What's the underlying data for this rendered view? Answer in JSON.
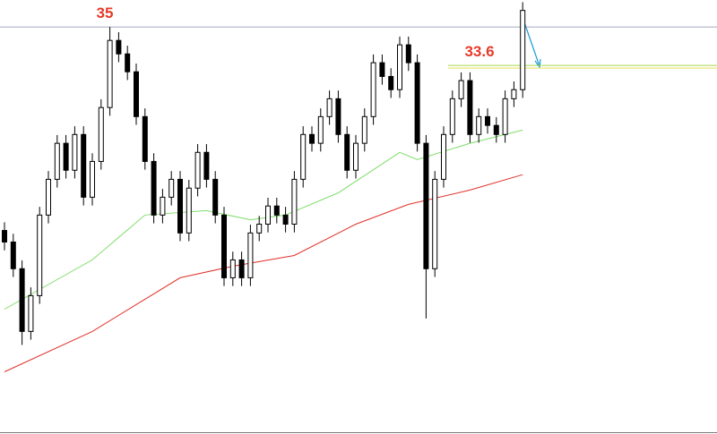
{
  "chart_data": {
    "type": "candlestick",
    "ylim": [
      20.2,
      35.98
    ],
    "open": [
      27.6,
      27.18,
      26.21,
      23.93,
      25.23,
      28.16,
      29.46,
      30.77,
      29.79,
      31.09,
      28.81,
      30.11,
      32.07,
      34.51,
      34.02,
      33.37,
      31.74,
      30.11,
      28.16,
      28.81,
      29.46,
      27.51,
      29.14,
      30.44,
      29.46,
      28.16,
      25.88,
      26.53,
      25.88,
      27.51,
      27.83,
      28.49,
      28.16,
      27.83,
      29.46,
      31.09,
      30.77,
      31.74,
      32.39,
      31.09,
      29.79,
      30.77,
      31.74,
      33.7,
      33.2,
      32.72,
      34.35,
      33.7,
      30.77,
      26.21,
      29.46,
      31.09,
      32.39,
      33.05,
      31.09,
      31.74,
      31.42,
      31.09,
      32.39,
      32.72
    ],
    "high": [
      27.9,
      27.48,
      26.51,
      25.53,
      28.46,
      29.76,
      31.07,
      31.07,
      31.39,
      31.39,
      30.41,
      32.37,
      35.0,
      34.81,
      34.32,
      33.67,
      32.04,
      30.41,
      29.11,
      29.76,
      29.76,
      29.44,
      30.74,
      30.74,
      29.76,
      28.46,
      26.83,
      26.83,
      27.81,
      28.13,
      28.79,
      28.79,
      28.46,
      29.76,
      31.39,
      31.39,
      32.04,
      32.69,
      32.69,
      31.39,
      31.07,
      32.04,
      34.0,
      34.0,
      33.5,
      34.65,
      34.65,
      34.0,
      31.07,
      29.76,
      31.39,
      32.69,
      33.35,
      33.35,
      32.04,
      32.04,
      31.72,
      32.69,
      33.02,
      35.9
    ],
    "low": [
      26.88,
      25.91,
      23.44,
      23.63,
      24.93,
      27.86,
      29.16,
      29.49,
      29.49,
      28.51,
      28.51,
      29.81,
      31.77,
      33.72,
      33.07,
      31.44,
      29.81,
      27.86,
      27.86,
      28.51,
      27.21,
      27.21,
      28.84,
      29.16,
      27.86,
      25.58,
      25.58,
      25.58,
      25.58,
      27.21,
      27.53,
      27.86,
      27.53,
      27.53,
      29.16,
      30.47,
      30.47,
      31.44,
      30.79,
      29.49,
      29.49,
      30.47,
      31.44,
      32.9,
      32.42,
      32.42,
      33.4,
      30.47,
      24.4,
      25.91,
      29.16,
      30.79,
      32.09,
      30.79,
      30.79,
      31.12,
      30.79,
      30.79,
      32.09,
      32.42
    ],
    "close": [
      27.18,
      26.21,
      23.93,
      25.23,
      28.16,
      29.46,
      30.77,
      29.79,
      31.09,
      28.81,
      30.11,
      32.07,
      34.51,
      34.02,
      33.37,
      31.74,
      30.11,
      28.16,
      28.81,
      29.46,
      27.51,
      29.14,
      30.44,
      29.46,
      28.16,
      25.88,
      26.53,
      25.88,
      27.51,
      27.83,
      28.49,
      28.16,
      27.83,
      29.46,
      31.09,
      30.77,
      31.74,
      32.39,
      31.09,
      29.79,
      30.77,
      31.74,
      33.7,
      33.2,
      32.72,
      34.35,
      33.7,
      30.77,
      26.21,
      29.46,
      31.09,
      32.39,
      33.05,
      31.09,
      31.74,
      31.42,
      31.09,
      32.39,
      32.72,
      35.6
    ],
    "overlays": [
      {
        "color": "#7fdc6a",
        "x": [
          0,
          10,
          16,
          23,
          28,
          32,
          38,
          45,
          47,
          53,
          59
        ],
        "values": [
          24.74,
          26.53,
          28.16,
          28.32,
          27.99,
          28.16,
          28.97,
          30.44,
          30.18,
          30.77,
          31.25
        ]
      },
      {
        "color": "#e0302a",
        "x": [
          0,
          10,
          20,
          26,
          33,
          40,
          46,
          53,
          59
        ],
        "values": [
          22.46,
          23.93,
          25.88,
          26.3,
          26.69,
          27.83,
          28.55,
          29.07,
          29.63
        ]
      }
    ],
    "levels": [
      35,
      33.6
    ],
    "level_colors": [
      "#8a8fa8",
      "#a6d84a"
    ],
    "label_color": "#e53a2a"
  }
}
